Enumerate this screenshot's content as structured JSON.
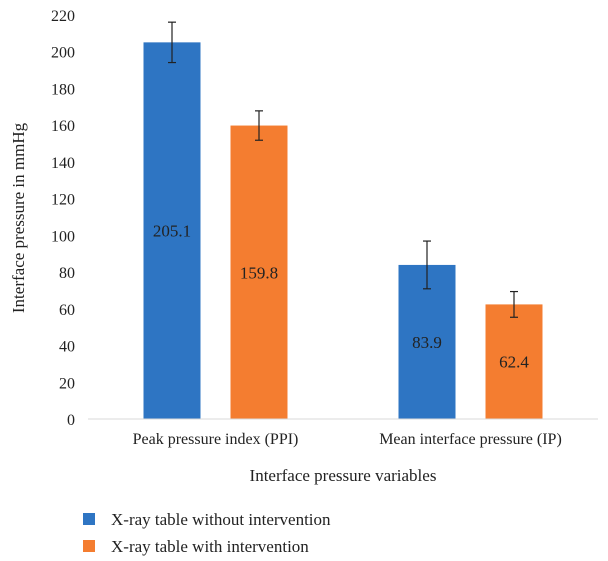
{
  "chart_data": {
    "type": "bar",
    "title": "",
    "xlabel": "Interface pressure variables",
    "ylabel": "Interface pressure in mmHg",
    "ylim": [
      0,
      220
    ],
    "yticks": [
      0,
      20,
      40,
      60,
      80,
      100,
      120,
      140,
      160,
      180,
      200,
      220
    ],
    "grid": false,
    "legend_position": "bottom-left",
    "categories": [
      "Peak pressure index (PPI)",
      "Mean interface pressure (IP)"
    ],
    "series": [
      {
        "name": "X-ray table without intervention",
        "color": "#2e75c3",
        "values": [
          205.1,
          83.9
        ],
        "labels": [
          "205.1",
          "83.9"
        ],
        "error": [
          11,
          13
        ]
      },
      {
        "name": "X-ray table with intervention",
        "color": "#f47d30",
        "values": [
          159.8,
          62.4
        ],
        "labels": [
          "159.8",
          "62.4"
        ],
        "error": [
          8,
          7
        ]
      }
    ]
  }
}
